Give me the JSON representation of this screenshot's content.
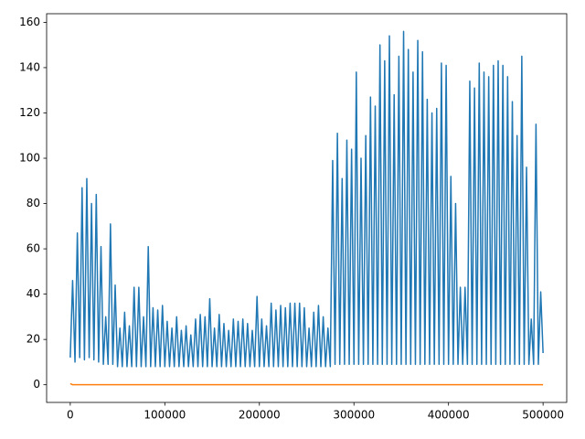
{
  "chart_data": {
    "type": "line",
    "series": [
      {
        "color": "#1f77b4",
        "x": [
          0,
          2500,
          5000,
          7500,
          10000,
          12500,
          15000,
          17500,
          20000,
          22500,
          25000,
          27500,
          30000,
          32500,
          35000,
          37500,
          40000,
          42500,
          45000,
          47500,
          50000,
          52500,
          55000,
          57500,
          60000,
          62500,
          65000,
          67500,
          70000,
          72500,
          75000,
          77500,
          80000,
          82500,
          85000,
          87500,
          90000,
          92500,
          95000,
          97500,
          100000,
          102500,
          105000,
          107500,
          110000,
          112500,
          115000,
          117500,
          120000,
          122500,
          125000,
          127500,
          130000,
          132500,
          135000,
          137500,
          140000,
          142500,
          145000,
          147500,
          150000,
          152500,
          155000,
          157500,
          160000,
          162500,
          165000,
          167500,
          170000,
          172500,
          175000,
          177500,
          180000,
          182500,
          185000,
          187500,
          190000,
          192500,
          195000,
          197500,
          200000,
          202500,
          205000,
          207500,
          210000,
          212500,
          215000,
          217500,
          220000,
          222500,
          225000,
          227500,
          230000,
          232500,
          235000,
          237500,
          240000,
          242500,
          245000,
          247500,
          250000,
          252500,
          255000,
          257500,
          260000,
          262500,
          265000,
          267500,
          270000,
          272500,
          275000,
          277500,
          280000,
          282500,
          285000,
          287500,
          290000,
          292500,
          295000,
          297500,
          300000,
          302500,
          305000,
          307500,
          310000,
          312500,
          315000,
          317500,
          320000,
          322500,
          325000,
          327500,
          330000,
          332500,
          335000,
          337500,
          340000,
          342500,
          345000,
          347500,
          350000,
          352500,
          355000,
          357500,
          360000,
          362500,
          365000,
          367500,
          370000,
          372500,
          375000,
          377500,
          380000,
          382500,
          385000,
          387500,
          390000,
          392500,
          395000,
          397500,
          400000,
          402500,
          405000,
          407500,
          410000,
          412500,
          415000,
          417500,
          420000,
          422500,
          425000,
          427500,
          430000,
          432500,
          435000,
          437500,
          440000,
          442500,
          445000,
          447500,
          450000,
          452500,
          455000,
          457500,
          460000,
          462500,
          465000,
          467500,
          470000,
          472500,
          475000,
          477500,
          480000,
          482500,
          485000,
          487500,
          490000,
          492500,
          495000,
          497500,
          500000
        ],
        "values": [
          12,
          46,
          10,
          67,
          12,
          87,
          11,
          91,
          12,
          80,
          11,
          84,
          10,
          61,
          9,
          30,
          9,
          71,
          9,
          44,
          8,
          25,
          8,
          32,
          8,
          26,
          8,
          43,
          8,
          43,
          8,
          30,
          8,
          61,
          8,
          34,
          8,
          33,
          8,
          35,
          8,
          28,
          8,
          25,
          8,
          30,
          8,
          24,
          8,
          26,
          8,
          22,
          8,
          29,
          8,
          31,
          8,
          30,
          8,
          38,
          8,
          25,
          8,
          31,
          8,
          27,
          8,
          24,
          8,
          29,
          8,
          28,
          8,
          29,
          8,
          27,
          8,
          24,
          8,
          39,
          8,
          29,
          8,
          26,
          8,
          36,
          8,
          33,
          8,
          35,
          8,
          34,
          8,
          36,
          8,
          36,
          8,
          36,
          8,
          34,
          8,
          25,
          8,
          32,
          8,
          35,
          8,
          30,
          8,
          25,
          8,
          99,
          9,
          111,
          9,
          91,
          9,
          108,
          9,
          104,
          9,
          138,
          9,
          100,
          9,
          110,
          9,
          127,
          9,
          123,
          9,
          150,
          9,
          143,
          9,
          154,
          9,
          128,
          9,
          145,
          9,
          156,
          9,
          148,
          9,
          138,
          9,
          152,
          9,
          147,
          9,
          126,
          9,
          120,
          9,
          122,
          9,
          142,
          9,
          141,
          9,
          92,
          9,
          80,
          9,
          43,
          9,
          43,
          9,
          134,
          9,
          131,
          9,
          142,
          9,
          138,
          9,
          136,
          9,
          141,
          9,
          143,
          9,
          141,
          9,
          136,
          9,
          125,
          9,
          110,
          9,
          145,
          9,
          96,
          9,
          29,
          9,
          115,
          9,
          41,
          14
        ]
      },
      {
        "color": "#ff7f0e",
        "x": [
          0,
          2500,
          500000
        ],
        "values": [
          0.5,
          0,
          0
        ]
      }
    ],
    "xlim": [
      -25000,
      525000
    ],
    "ylim": [
      -7.8,
      163.8
    ],
    "xticks": [
      0,
      100000,
      200000,
      300000,
      400000,
      500000
    ],
    "yticks": [
      0,
      20,
      40,
      60,
      80,
      100,
      120,
      140,
      160
    ]
  }
}
